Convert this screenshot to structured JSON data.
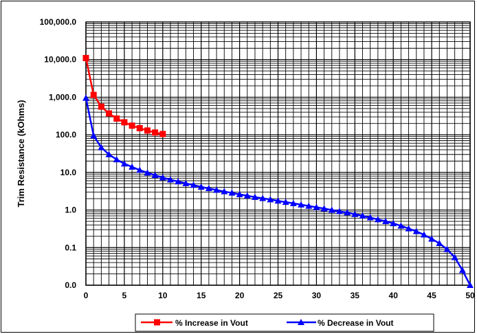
{
  "chart_data": {
    "type": "line",
    "ylabel": "Trim Resistance (kOhms)",
    "xlabel": "",
    "xlim": [
      0,
      50
    ],
    "x_ticks": [
      0,
      5,
      10,
      15,
      20,
      25,
      30,
      35,
      40,
      45,
      50
    ],
    "x_tick_labels": [
      "0",
      "5",
      "10",
      "15",
      "20",
      "25",
      "30",
      "35",
      "40",
      "45",
      "50"
    ],
    "y_scale": "log",
    "ylim": [
      0.01,
      100000
    ],
    "y_ticks": [
      0.01,
      0.1,
      1,
      10,
      100,
      1000,
      10000,
      100000
    ],
    "y_tick_labels": [
      "0.0",
      "0.1",
      "1.0",
      "10.0",
      "100.0",
      "1,000.0",
      "10,000.0",
      "100,000.0"
    ],
    "grid": true,
    "legend_position": "bottom",
    "series": [
      {
        "name": "% Increase in Vout",
        "color": "#ff0000",
        "marker": "square",
        "x": [
          0,
          1,
          2,
          3,
          4,
          5,
          6,
          7,
          8,
          9,
          10
        ],
        "y": [
          11000,
          1150,
          560,
          370,
          270,
          215,
          175,
          150,
          130,
          115,
          105
        ]
      },
      {
        "name": "% Decrease in Vout",
        "color": "#0000ff",
        "marker": "triangle",
        "x": [
          0,
          1,
          2,
          3,
          4,
          5,
          6,
          7,
          8,
          9,
          10,
          11,
          12,
          13,
          14,
          15,
          16,
          17,
          18,
          19,
          20,
          21,
          22,
          23,
          24,
          25,
          26,
          27,
          28,
          29,
          30,
          31,
          32,
          33,
          34,
          35,
          36,
          37,
          38,
          39,
          40,
          41,
          42,
          43,
          44,
          45,
          46,
          47,
          48,
          49,
          50
        ],
        "y": [
          950,
          95,
          46,
          30,
          22,
          17,
          14,
          11.5,
          9.8,
          8.4,
          7.3,
          6.4,
          5.7,
          5.1,
          4.6,
          4.1,
          3.75,
          3.4,
          3.1,
          2.85,
          2.6,
          2.4,
          2.2,
          2.05,
          1.9,
          1.75,
          1.62,
          1.5,
          1.38,
          1.28,
          1.18,
          1.09,
          1.0,
          0.92,
          0.85,
          0.77,
          0.7,
          0.63,
          0.56,
          0.5,
          0.44,
          0.38,
          0.32,
          0.27,
          0.22,
          0.17,
          0.13,
          0.09,
          0.055,
          0.025,
          0.01
        ]
      }
    ]
  }
}
